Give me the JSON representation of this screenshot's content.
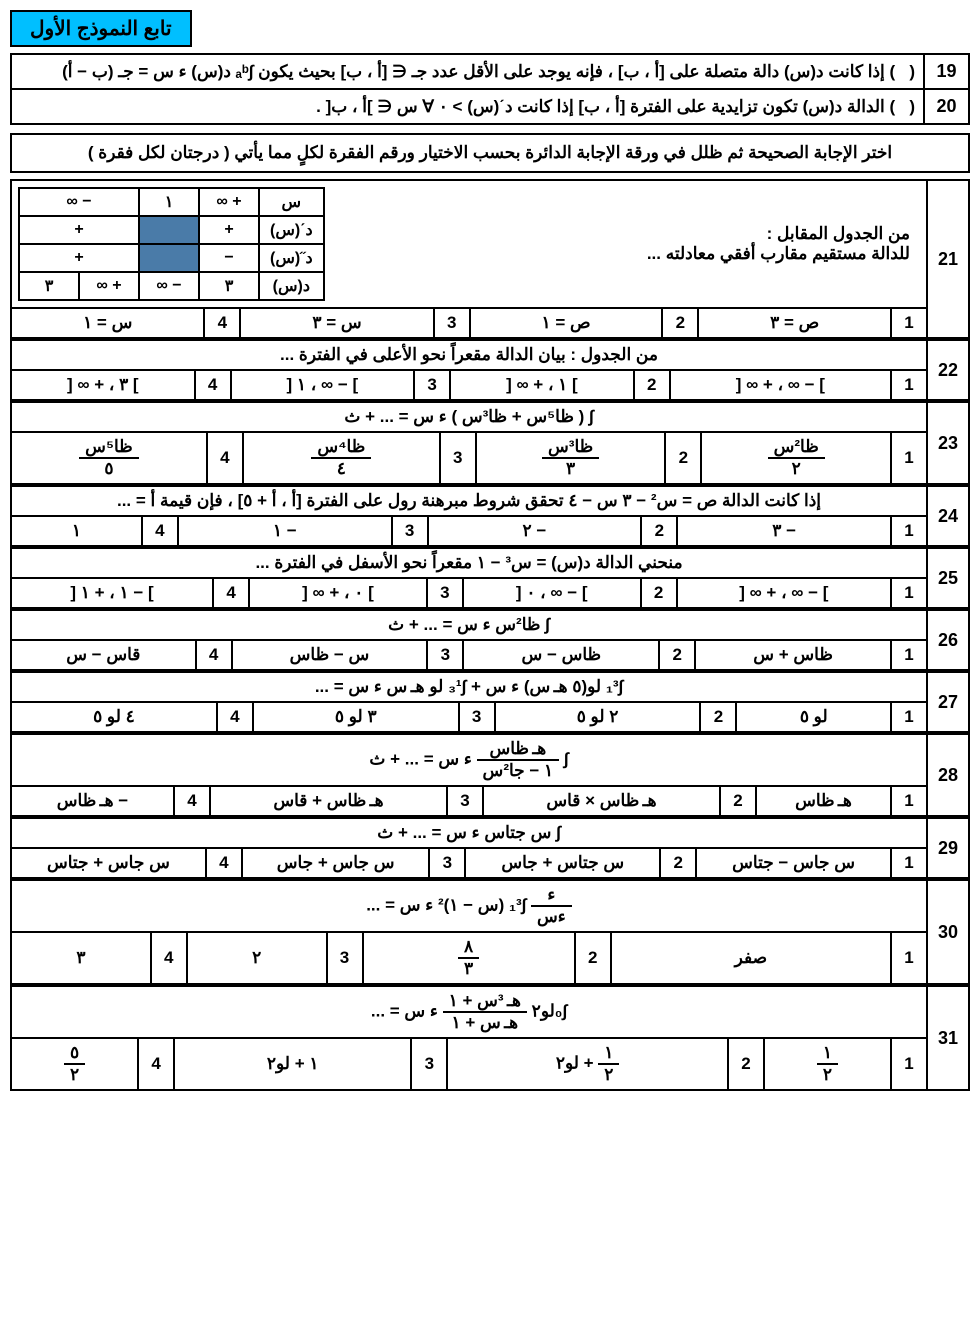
{
  "header": "تابع النموذج الأول",
  "tf": [
    {
      "num": "19",
      "text": "(   ) إذا كانت د(س) دالة متصلة على [أ ، ب] ، فإنه يوجد على الأقل عدد جـ ∈ [أ ، ب] بحيث يكون ∫ₐᵇ د(س) ء س = جـ (ب − أ)"
    },
    {
      "num": "20",
      "text": "(   ) الدالة د(س) تكون تزايدية على الفترة [أ ، ب] إذا كانت دˊ(س) > ٠ ∀ س ∈ ]أ ، ب[ ."
    }
  ],
  "instruction": "اختر الإجابة الصحيحة ثم ظلل في ورقة الإجابة الدائرة بحسب الاختيار ورقم الفقرة لكلٍ مما يأتي  ( درجتان لكل فقرة )",
  "q21": {
    "num": "21",
    "text1": "من الجدول المقابل :",
    "text2": "للدالة مستقيم مقارب أفقي معادلته ...",
    "mini": {
      "rows": [
        [
          "س",
          "+ ∞",
          "١",
          "− ∞"
        ],
        [
          "دˊ(س)",
          "+",
          "",
          "+"
        ],
        [
          "د˝(س)",
          "−",
          "",
          "+"
        ],
        [
          "د(س)",
          "٣",
          "− ∞",
          "+ ∞",
          "٣"
        ]
      ]
    },
    "opts": [
      "ص = ٣",
      "ص = ١",
      "س = ٣",
      "س = ١"
    ]
  },
  "questions": [
    {
      "num": "22",
      "text": "من الجدول : بيان الدالة مقعراً نحو الأعلى في الفترة ...",
      "opts": [
        "] − ∞ ، + ∞ [",
        "] ١ ، + ∞ [",
        "] − ∞ ، ١ [",
        "] ٣ ، + ∞ ["
      ]
    },
    {
      "num": "23",
      "text": "∫ ( ظا⁵س + ظا³س ) ء س = ... + ث",
      "opts_frac": [
        {
          "num": "ظا²س",
          "den": "٢"
        },
        {
          "num": "ظا³س",
          "den": "٣"
        },
        {
          "num": "ظا⁴س",
          "den": "٤"
        },
        {
          "num": "ظا⁵س",
          "den": "٥"
        }
      ]
    },
    {
      "num": "24",
      "text": "إذا كانت الدالة ص = س² − ٣ س − ٤ تحقق شروط مبرهنة رول على الفترة [أ ، أ + ٥] ، فإن قيمة أ = ...",
      "opts": [
        "− ٣",
        "− ٢",
        "− ١",
        "١"
      ]
    },
    {
      "num": "25",
      "text": "منحني الدالة د(س) = س³ − ١ مقعراً نحو الأسفل في الفترة ...",
      "opts": [
        "] − ∞ ، + ∞ [",
        "] − ∞ ، ٠ [",
        "] ٠ ، + ∞ [",
        "] − ١ ، + ١ ["
      ]
    },
    {
      "num": "26",
      "text": "∫ ظا²س ء س = ... + ث",
      "opts": [
        "ظاس + س",
        "ظاس − س",
        "س − ظاس",
        "قاس − س"
      ]
    },
    {
      "num": "27",
      "text": "∫₁³ لو(٥ هـ س) ء س + ∫₃¹ لو هـ س ء س = ...",
      "opts": [
        "لو ٥",
        "٢ لو ٥",
        "٣ لو ٥",
        "٤ لو ٥"
      ]
    },
    {
      "num": "28",
      "text_frac": {
        "pre": "∫ ",
        "num": "هـ ظاس",
        "den": "١ − جا²س",
        "post": " ء س = ... + ث"
      },
      "opts": [
        "هـ ظاس",
        "هـ ظاس × قاس",
        "هـ ظاس + قاس",
        "− هـ ظاس"
      ]
    },
    {
      "num": "29",
      "text": "∫ س جتاس ء س = ... + ث",
      "opts": [
        "س جاس − جتاس",
        "س جتاس + جاس",
        "س جاس + جاس",
        "س جاس + جتاس"
      ]
    },
    {
      "num": "30",
      "text_html": "<span class='frac'><span class='num'>ء</span><span class='den'>ءس</span></span> ∫₁³ (س − ١)² ء س = ...",
      "opts_mixed": [
        "صفر",
        {
          "num": "٨",
          "den": "٣"
        },
        "٢",
        "٣"
      ]
    },
    {
      "num": "31",
      "text_frac": {
        "pre": "∫₀‎لو٢ ",
        "num": "هـ ³س + ١",
        "den": "هـ س + ١",
        "post": " ء س = ..."
      },
      "opts_mixed": [
        {
          "num": "١",
          "den": "٢"
        },
        "<span class='frac'><span class='num'>١</span><span class='den'>٢</span></span> + لو٢",
        "١ + لو٢",
        {
          "num": "٥",
          "den": "٢"
        }
      ]
    }
  ]
}
